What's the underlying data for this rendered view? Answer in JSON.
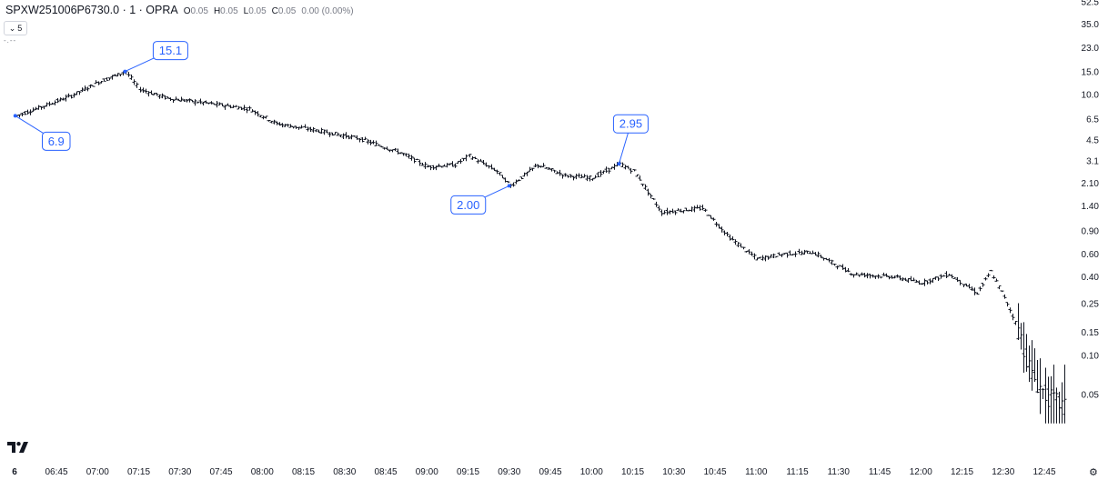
{
  "header": {
    "symbol": "SPXW251006P6730.0 · 1 · OPRA",
    "ohlc": {
      "o_label": "O",
      "o": "0.05",
      "h_label": "H",
      "h": "0.05",
      "l_label": "L",
      "l": "0.05",
      "c_label": "C",
      "c": "0.05",
      "change": "0.00 (0.00%)"
    },
    "collapse_label": "5"
  },
  "colors": {
    "bar": "#131722",
    "marker": "#2962ff",
    "callout_text": "#2962ff",
    "axis_text": "#131722"
  },
  "icons": {
    "logo": "tradingview-logo-icon",
    "settings": "gear-icon",
    "collapse": "chevron-down-icon"
  },
  "chart_data": {
    "type": "ohlc",
    "scale": "log",
    "y_ticks": [
      "52.5",
      "35.0",
      "23.0",
      "15.0",
      "10.0",
      "6.5",
      "4.5",
      "3.1",
      "2.10",
      "1.40",
      "0.90",
      "0.60",
      "0.40",
      "0.25",
      "0.15",
      "0.10",
      "0.05"
    ],
    "x_ticks": [
      "6",
      "06:45",
      "07:00",
      "07:15",
      "07:30",
      "07:45",
      "08:00",
      "08:15",
      "08:30",
      "08:45",
      "09:00",
      "09:15",
      "09:30",
      "09:45",
      "10:00",
      "10:15",
      "10:30",
      "10:45",
      "11:00",
      "11:15",
      "11:30",
      "11:45",
      "12:00",
      "12:15",
      "12:30",
      "12:45"
    ],
    "path_keys": [
      [
        "06:30",
        6.9
      ],
      [
        "06:40",
        8.2
      ],
      [
        "06:50",
        9.8
      ],
      [
        "07:00",
        12.5
      ],
      [
        "07:10",
        15.1
      ],
      [
        "07:15",
        11.0
      ],
      [
        "07:25",
        9.4
      ],
      [
        "07:40",
        8.6
      ],
      [
        "07:55",
        7.8
      ],
      [
        "08:05",
        6.0
      ],
      [
        "08:20",
        5.3
      ],
      [
        "08:35",
        4.6
      ],
      [
        "08:50",
        3.6
      ],
      [
        "09:00",
        2.8
      ],
      [
        "09:10",
        2.9
      ],
      [
        "09:15",
        3.4
      ],
      [
        "09:25",
        2.6
      ],
      [
        "09:30",
        2.0
      ],
      [
        "09:40",
        2.9
      ],
      [
        "09:50",
        2.4
      ],
      [
        "10:00",
        2.3
      ],
      [
        "10:10",
        2.95
      ],
      [
        "10:15",
        2.6
      ],
      [
        "10:25",
        1.25
      ],
      [
        "10:40",
        1.35
      ],
      [
        "10:50",
        0.8
      ],
      [
        "11:00",
        0.55
      ],
      [
        "11:10",
        0.6
      ],
      [
        "11:20",
        0.62
      ],
      [
        "11:35",
        0.42
      ],
      [
        "11:50",
        0.4
      ],
      [
        "12:00",
        0.36
      ],
      [
        "12:10",
        0.42
      ],
      [
        "12:20",
        0.3
      ],
      [
        "12:25",
        0.44
      ],
      [
        "12:30",
        0.28
      ],
      [
        "12:35",
        0.16
      ],
      [
        "12:40",
        0.07
      ],
      [
        "12:45",
        0.05
      ],
      [
        "12:52",
        0.04
      ]
    ],
    "callouts": [
      {
        "label": "15.1",
        "x": "07:10",
        "y": 15.1
      },
      {
        "label": "6.9",
        "x": "06:30",
        "y": 6.9
      },
      {
        "label": "2.00",
        "x": "09:30",
        "y": 2.0
      },
      {
        "label": "2.95",
        "x": "10:10",
        "y": 2.95
      }
    ]
  }
}
